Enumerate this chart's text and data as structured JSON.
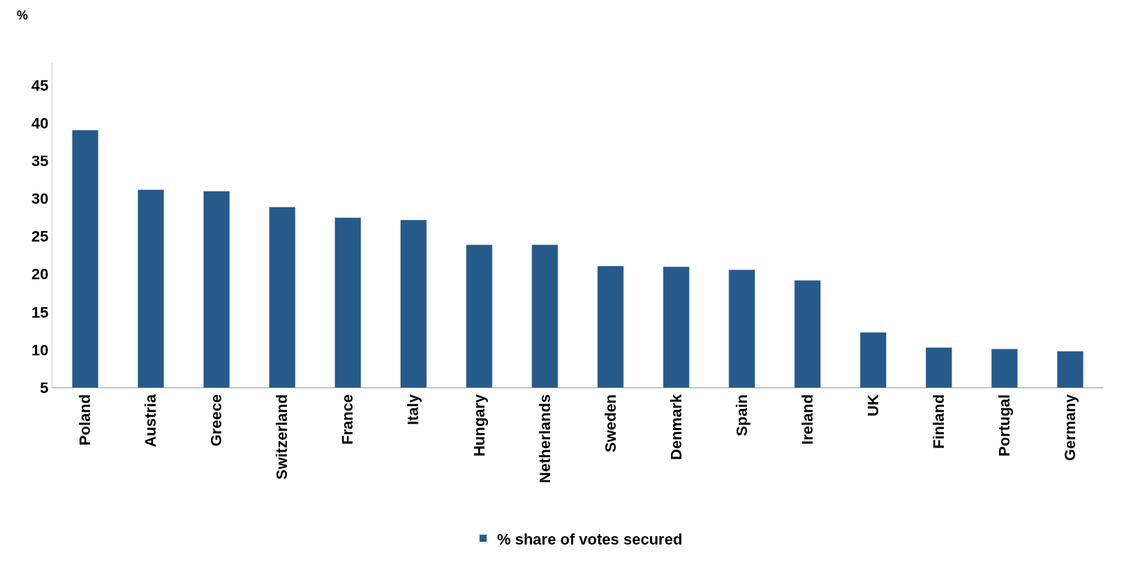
{
  "chart_data": {
    "type": "bar",
    "ylabel": "%",
    "categories": [
      "Poland",
      "Austria",
      "Greece",
      "Switzerland",
      "France",
      "Italy",
      "Hungary",
      "Netherlands",
      "Sweden",
      "Denmark",
      "Spain",
      "Ireland",
      "UK",
      "Finland",
      "Portugal",
      "Germany"
    ],
    "series": [
      {
        "name": "% share of votes secured",
        "color": "#255a8a",
        "values": [
          39.1,
          31.2,
          31.0,
          28.9,
          27.5,
          27.2,
          23.9,
          23.9,
          21.1,
          21.0,
          20.6,
          19.2,
          12.3,
          10.3,
          10.1,
          9.8
        ]
      }
    ],
    "ylim": [
      5,
      48
    ],
    "yticks": [
      5,
      10,
      15,
      20,
      25,
      30,
      35,
      40,
      45
    ],
    "legend": "bottom"
  }
}
